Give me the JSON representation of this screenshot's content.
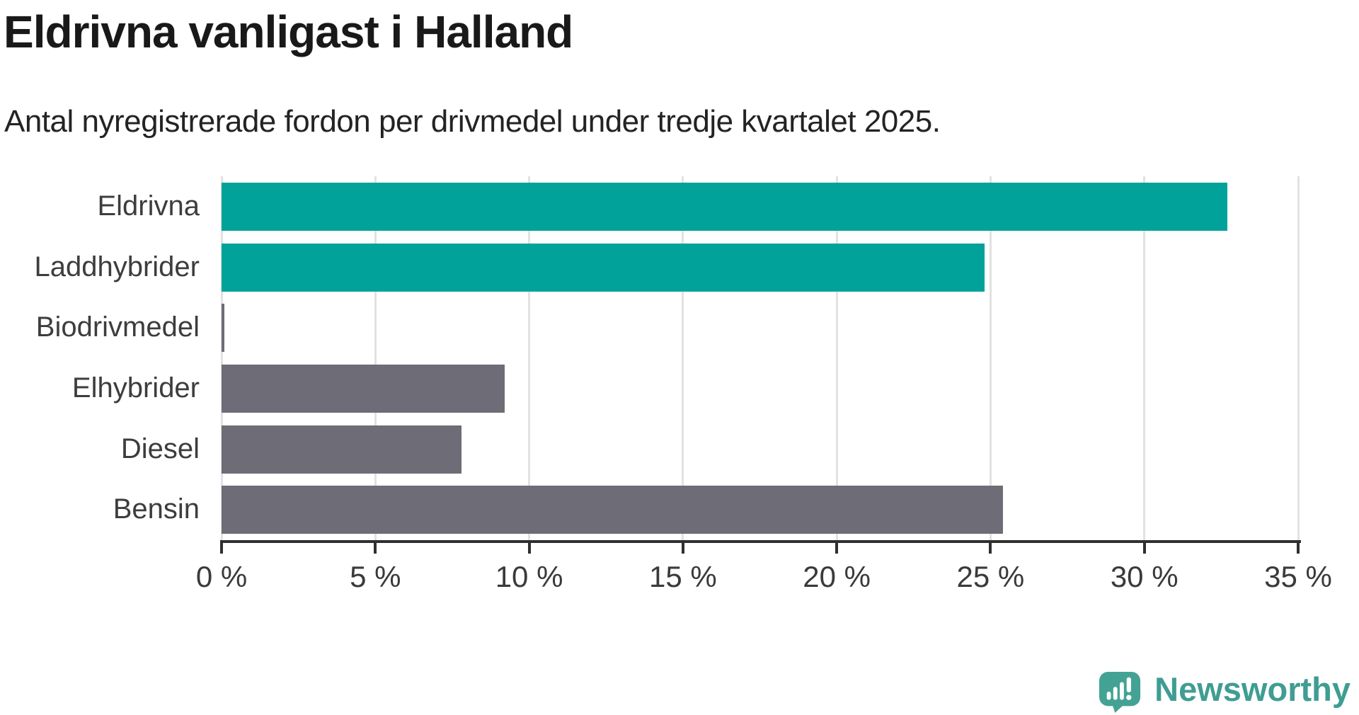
{
  "title": "Eldrivna vanligast i Halland",
  "subtitle": "Antal nyregistrerade fordon per drivmedel under tredje kvartalet 2025.",
  "colors": {
    "accent_teal": "#00A29A",
    "neutral_gray": "#6E6C76",
    "gridline": "#E2E2E2",
    "axis": "#2F2F2F",
    "title_text": "#191919",
    "label_text": "#3D3D3D",
    "logo_teal": "#44A294",
    "logo_text_teal": "#3F9D93"
  },
  "chart_data": {
    "type": "bar",
    "orientation": "horizontal",
    "title": "Eldrivna vanligast i Halland",
    "subtitle": "Antal nyregistrerade fordon per drivmedel under tredje kvartalet 2025.",
    "categories": [
      "Eldrivna",
      "Laddhybrider",
      "Biodrivmedel",
      "Elhybrider",
      "Diesel",
      "Bensin"
    ],
    "values": [
      32.7,
      24.8,
      0.1,
      9.2,
      7.8,
      25.4
    ],
    "unit": "%",
    "bar_colors": [
      "#00A29A",
      "#00A29A",
      "#6E6C76",
      "#6E6C76",
      "#6E6C76",
      "#6E6C76"
    ],
    "xlabel": "",
    "ylabel": "",
    "xlim": [
      0,
      35
    ],
    "xticks": [
      0,
      5,
      10,
      15,
      20,
      25,
      30,
      35
    ],
    "xtick_labels": [
      "0 %",
      "5 %",
      "10 %",
      "15 %",
      "20 %",
      "25 %",
      "30 %",
      "35 %"
    ],
    "grid": "vertical",
    "legend": "none"
  },
  "branding": {
    "logo_text": "Newsworthy",
    "logo_icon": "speech-bubble-with-bar-chart-and-exclamation"
  }
}
